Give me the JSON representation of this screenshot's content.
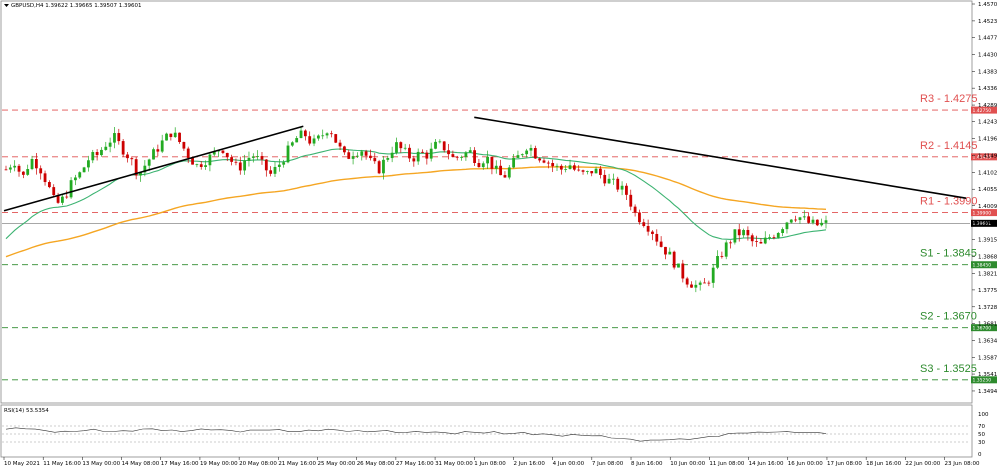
{
  "header": {
    "symbol_line": "GBPUSD,H4  1.39622 1.39665 1.39507 1.39601",
    "rsi_label": "RSI(14) 53.5354"
  },
  "chart_data": {
    "type": "candlestick",
    "symbol": "GBPUSD",
    "timeframe": "H4",
    "ohlc_header": {
      "open": 1.39622,
      "high": 1.39665,
      "low": 1.39507,
      "close": 1.39601
    },
    "current_price": 1.39601,
    "ylim": [
      1.348,
      1.457
    ],
    "y_ticks": [
      1.457,
      1.4523,
      1.4477,
      1.443,
      1.4383,
      1.4336,
      1.4289,
      1.4243,
      1.4196,
      1.4149,
      1.4102,
      1.4055,
      1.4009,
      1.3962,
      1.3915,
      1.3868,
      1.3821,
      1.3775,
      1.3728,
      1.3681,
      1.3634,
      1.3587,
      1.3541,
      1.3494
    ],
    "x_ticks": [
      "10 May 2021",
      "11 May 16:00",
      "13 May 00:00",
      "14 May 08:00",
      "17 May 16:00",
      "19 May 00:00",
      "20 May 08:00",
      "21 May 16:00",
      "25 May 00:00",
      "26 May 08:00",
      "27 May 16:00",
      "31 May 00:00",
      "1 Jun 08:00",
      "2 Jun 16:00",
      "4 Jun 00:00",
      "7 Jun 08:00",
      "8 Jun 16:00",
      "10 Jun 00:00",
      "11 Jun 08:00",
      "14 Jun 16:00",
      "16 Jun 00:00",
      "17 Jun 08:00",
      "18 Jun 16:00",
      "22 Jun 00:00",
      "23 Jun 08:00"
    ],
    "levels": [
      {
        "name": "R3",
        "label": "R3 - 1.4275",
        "value": 1.4275,
        "tag": "1.42750",
        "color": "#e05050",
        "kind": "resistance"
      },
      {
        "name": "R2",
        "label": "R2 - 1.4145",
        "value": 1.4145,
        "tag": "1.41450",
        "color": "#e05050",
        "kind": "resistance"
      },
      {
        "name": "R1",
        "label": "R1 - 1.3990",
        "value": 1.399,
        "tag": "1.39900",
        "color": "#e05050",
        "kind": "resistance"
      },
      {
        "name": "S1",
        "label": "S1 - 1.3845",
        "value": 1.3845,
        "tag": "1.38450",
        "color": "#2e8b2e",
        "kind": "support"
      },
      {
        "name": "S2",
        "label": "S2 - 1.3670",
        "value": 1.367,
        "tag": "1.36700",
        "color": "#2e8b2e",
        "kind": "support"
      },
      {
        "name": "S3",
        "label": "S3 - 1.3525",
        "value": 1.3525,
        "tag": "1.35250",
        "color": "#2e8b2e",
        "kind": "support"
      }
    ],
    "price_path": [
      1.411,
      1.4135,
      1.4085,
      1.414,
      1.412,
      1.407,
      1.401,
      1.403,
      1.4075,
      1.41,
      1.414,
      1.415,
      1.418,
      1.42,
      1.417,
      1.414,
      1.4095,
      1.413,
      1.416,
      1.419,
      1.4215,
      1.4185,
      1.415,
      1.412,
      1.4135,
      1.415,
      1.4175,
      1.414,
      1.411,
      1.414,
      1.415,
      1.412,
      1.4095,
      1.4125,
      1.416,
      1.4195,
      1.421,
      1.418,
      1.42,
      1.423,
      1.418,
      1.414,
      1.416,
      1.4165,
      1.413,
      1.411,
      1.4145,
      1.418,
      1.416,
      1.414,
      1.4155,
      1.415,
      1.418,
      1.417,
      1.414,
      1.415,
      1.416,
      1.413,
      1.4145,
      1.411,
      1.4085,
      1.412,
      1.415,
      1.418,
      1.415,
      1.414,
      1.412,
      1.411,
      1.4125,
      1.41,
      1.4095,
      1.411,
      1.409,
      1.4075,
      1.406,
      1.404,
      1.3985,
      1.3965,
      1.394,
      1.39,
      1.3875,
      1.384,
      1.3805,
      1.379,
      1.378,
      1.381,
      1.386,
      1.39,
      1.393,
      1.3935,
      1.391,
      1.3895,
      1.392,
      1.3935,
      1.396,
      1.3985,
      1.3975,
      1.396,
      1.3955,
      1.396
    ],
    "ema_fast": {
      "values_start": 1.3905,
      "values_end": 1.3968
    },
    "ema_slow": {
      "values_start": 1.3863,
      "values_end": 1.403
    },
    "trendlines": [
      {
        "name": "uptrend",
        "from": {
          "x": "10 May 2021",
          "price": 1.3995
        },
        "to": {
          "x": "21 May 16:00",
          "price": 1.423
        }
      },
      {
        "name": "downtrend",
        "from": {
          "x": "1 Jun 08:00",
          "price": 1.4255
        },
        "to": {
          "x": "18 Jun 16:00",
          "price": 1.403
        }
      }
    ],
    "rsi": {
      "period": 14,
      "last": 53.5354,
      "levels": [
        70,
        50,
        30
      ],
      "tick_labels": [
        "100",
        "70",
        "50",
        "30",
        "0"
      ],
      "series": [
        62,
        64,
        65,
        61,
        58,
        56,
        55,
        57,
        59,
        60,
        58,
        56,
        57,
        59,
        61,
        63,
        60,
        58,
        57,
        59,
        61,
        62,
        60,
        58,
        57,
        58,
        60,
        61,
        59,
        57,
        56,
        58,
        60,
        61,
        59,
        58,
        57,
        56,
        58,
        57,
        55,
        54,
        55,
        56,
        54,
        53,
        52,
        54,
        55,
        53,
        54,
        52,
        51,
        53,
        50,
        49,
        48,
        46,
        47,
        48,
        46,
        44,
        42,
        38,
        36,
        34,
        33,
        35,
        37,
        36,
        38,
        40,
        42,
        46,
        50,
        52,
        54,
        53,
        55,
        56,
        54,
        55,
        54,
        53,
        53
      ]
    },
    "colors": {
      "bull": "#22aa22",
      "bear": "#cc0000",
      "ema_fast": "#3cb371",
      "ema_slow": "#f5a623",
      "trendline": "#000000",
      "current": "#8a8a8a"
    }
  }
}
